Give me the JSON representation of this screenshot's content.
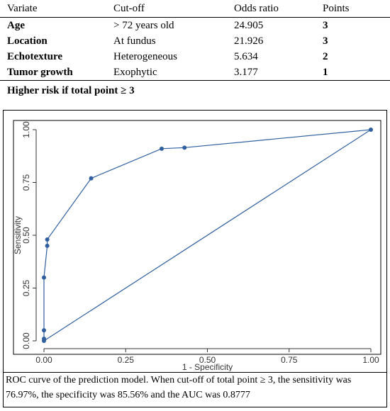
{
  "table": {
    "headers": [
      "Variate",
      "Cut-off",
      "Odds ratio",
      "Points"
    ],
    "rows": [
      {
        "variate": "Age",
        "cutoff": "> 72 years old",
        "odds_ratio": "24.905",
        "points": "3"
      },
      {
        "variate": "Location",
        "cutoff": "At fundus",
        "odds_ratio": "21.926",
        "points": "3"
      },
      {
        "variate": "Echotexture",
        "cutoff": "Heterogeneous",
        "odds_ratio": "5.634",
        "points": "2"
      },
      {
        "variate": "Tumor growth",
        "cutoff": "Exophytic",
        "odds_ratio": "3.177",
        "points": "1"
      }
    ]
  },
  "risk_note": "Higher risk if total point ≥ 3",
  "caption": "ROC curve of the prediction model. When cut-off of total point ≥ 3, the sensitivity was 76.97%, the specificity was 85.56% and the AUC was 0.8777",
  "chart_data": {
    "type": "line",
    "xlabel": "1 - Specificity",
    "ylabel": "Sensitivity",
    "xlim": [
      0,
      1
    ],
    "ylim": [
      0,
      1
    ],
    "x_ticks": [
      "0.00",
      "0.25",
      "0.50",
      "0.75",
      "1.00"
    ],
    "y_ticks": [
      "0.00",
      "0.25",
      "0.50",
      "0.75",
      "1.00"
    ],
    "grid": false,
    "series": [
      {
        "x": [
          0.0,
          0.0,
          0.0,
          0.0,
          0.01,
          0.01,
          0.1444,
          0.36,
          0.43,
          1.0
        ],
        "y": [
          0.0,
          0.01,
          0.05,
          0.3,
          0.45,
          0.48,
          0.7697,
          0.91,
          0.915,
          1.0
        ],
        "color": "#2f5f9e"
      },
      {
        "x": [
          0,
          1
        ],
        "y": [
          0,
          1
        ],
        "color": "#2f5f9e"
      }
    ]
  }
}
